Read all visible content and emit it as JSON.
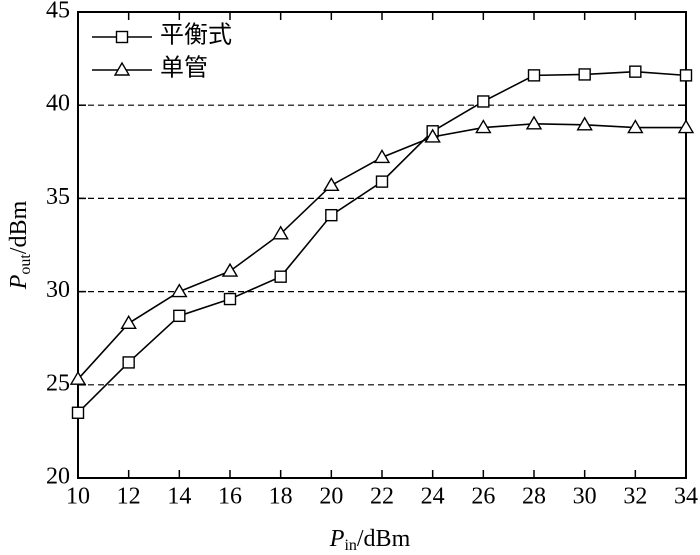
{
  "chart_data": {
    "type": "line",
    "x": [
      10,
      12,
      14,
      16,
      18,
      20,
      22,
      24,
      26,
      28,
      30,
      32,
      34
    ],
    "series": [
      {
        "name": "平衡式",
        "color": "#000000",
        "marker": "square",
        "values": [
          23.5,
          26.2,
          28.7,
          29.6,
          30.8,
          34.1,
          35.9,
          38.6,
          40.2,
          41.6,
          41.65,
          41.8,
          41.6
        ]
      },
      {
        "name": "单管",
        "color": "#000000",
        "marker": "triangle",
        "values": [
          25.3,
          28.3,
          30.0,
          31.1,
          33.1,
          35.7,
          37.2,
          38.3,
          38.8,
          39.0,
          38.95,
          38.8,
          38.8
        ]
      }
    ],
    "xlabel": {
      "symbol": "P",
      "sub": "in",
      "unit": "/dBm"
    },
    "ylabel": {
      "symbol": "P",
      "sub": "out",
      "unit": "/dBm"
    },
    "xlim": [
      10,
      34
    ],
    "xticks": [
      10,
      12,
      14,
      16,
      18,
      20,
      22,
      24,
      26,
      28,
      30,
      32,
      34
    ],
    "ylim": [
      20,
      45
    ],
    "yticks": [
      20,
      25,
      30,
      35,
      40,
      45
    ],
    "grid": true,
    "legend": "upper-left"
  }
}
